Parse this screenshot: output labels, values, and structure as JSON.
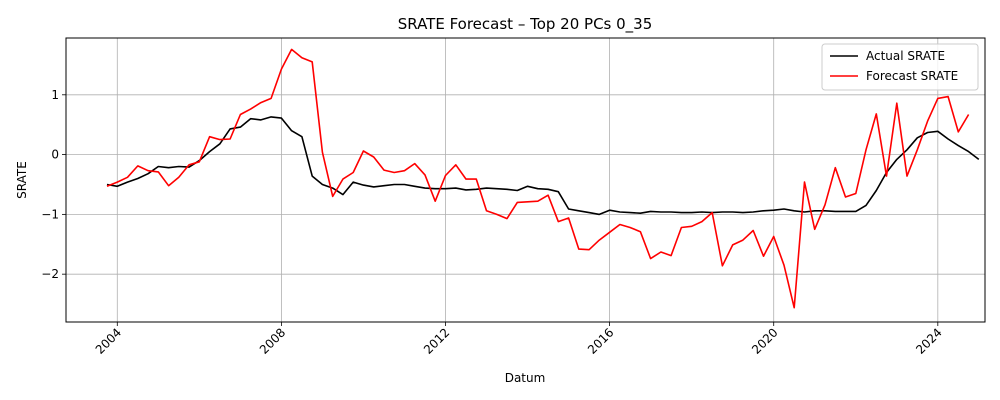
{
  "chart_data": {
    "type": "line",
    "title": "SRATE Forecast – Top 20 PCs 0_35",
    "xlabel": "Datum",
    "ylabel": "SRATE",
    "xlim": [
      2002.75,
      2025.15
    ],
    "ylim": [
      -2.8,
      1.95
    ],
    "grid": true,
    "legend_position": "top-right",
    "x_ticks": [
      2004,
      2008,
      2012,
      2016,
      2020,
      2024
    ],
    "x_tick_labels": [
      "2004",
      "2008",
      "2012",
      "2016",
      "2020",
      "2024"
    ],
    "y_ticks": [
      -2,
      -1,
      0,
      1
    ],
    "y_tick_labels": [
      "−2",
      "−1",
      "0",
      "1"
    ],
    "series": [
      {
        "name": "Actual SRATE",
        "color": "#000000",
        "points": [
          [
            2003.75,
            -0.5
          ],
          [
            2004.0,
            -0.53
          ],
          [
            2004.25,
            -0.46
          ],
          [
            2004.5,
            -0.4
          ],
          [
            2004.75,
            -0.32
          ],
          [
            2005.0,
            -0.2
          ],
          [
            2005.25,
            -0.22
          ],
          [
            2005.5,
            -0.2
          ],
          [
            2005.75,
            -0.21
          ],
          [
            2006.0,
            -0.1
          ],
          [
            2006.25,
            0.05
          ],
          [
            2006.5,
            0.18
          ],
          [
            2006.75,
            0.43
          ],
          [
            2007.0,
            0.46
          ],
          [
            2007.25,
            0.6
          ],
          [
            2007.5,
            0.58
          ],
          [
            2007.75,
            0.63
          ],
          [
            2008.0,
            0.61
          ],
          [
            2008.25,
            0.4
          ],
          [
            2008.5,
            0.3
          ],
          [
            2008.75,
            -0.36
          ],
          [
            2009.0,
            -0.5
          ],
          [
            2009.25,
            -0.56
          ],
          [
            2009.5,
            -0.67
          ],
          [
            2009.75,
            -0.46
          ],
          [
            2010.0,
            -0.51
          ],
          [
            2010.25,
            -0.54
          ],
          [
            2010.5,
            -0.52
          ],
          [
            2010.75,
            -0.5
          ],
          [
            2011.0,
            -0.5
          ],
          [
            2011.25,
            -0.53
          ],
          [
            2011.5,
            -0.56
          ],
          [
            2011.75,
            -0.57
          ],
          [
            2012.0,
            -0.57
          ],
          [
            2012.25,
            -0.56
          ],
          [
            2012.5,
            -0.59
          ],
          [
            2012.75,
            -0.58
          ],
          [
            2013.0,
            -0.56
          ],
          [
            2013.25,
            -0.57
          ],
          [
            2013.5,
            -0.58
          ],
          [
            2013.75,
            -0.6
          ],
          [
            2014.0,
            -0.53
          ],
          [
            2014.25,
            -0.57
          ],
          [
            2014.5,
            -0.58
          ],
          [
            2014.75,
            -0.62
          ],
          [
            2015.0,
            -0.91
          ],
          [
            2015.25,
            -0.94
          ],
          [
            2015.5,
            -0.97
          ],
          [
            2015.75,
            -1.0
          ],
          [
            2016.0,
            -0.93
          ],
          [
            2016.25,
            -0.96
          ],
          [
            2016.5,
            -0.97
          ],
          [
            2016.75,
            -0.98
          ],
          [
            2017.0,
            -0.95
          ],
          [
            2017.25,
            -0.96
          ],
          [
            2017.5,
            -0.96
          ],
          [
            2017.75,
            -0.97
          ],
          [
            2018.0,
            -0.97
          ],
          [
            2018.25,
            -0.96
          ],
          [
            2018.5,
            -0.97
          ],
          [
            2018.75,
            -0.96
          ],
          [
            2019.0,
            -0.96
          ],
          [
            2019.25,
            -0.97
          ],
          [
            2019.5,
            -0.96
          ],
          [
            2019.75,
            -0.94
          ],
          [
            2020.0,
            -0.93
          ],
          [
            2020.25,
            -0.91
          ],
          [
            2020.5,
            -0.94
          ],
          [
            2020.75,
            -0.96
          ],
          [
            2021.0,
            -0.94
          ],
          [
            2021.25,
            -0.94
          ],
          [
            2021.5,
            -0.95
          ],
          [
            2021.75,
            -0.95
          ],
          [
            2022.0,
            -0.95
          ],
          [
            2022.25,
            -0.85
          ],
          [
            2022.5,
            -0.6
          ],
          [
            2022.75,
            -0.3
          ],
          [
            2023.0,
            -0.08
          ],
          [
            2023.25,
            0.08
          ],
          [
            2023.5,
            0.28
          ],
          [
            2023.75,
            0.37
          ],
          [
            2024.0,
            0.39
          ],
          [
            2024.25,
            0.26
          ],
          [
            2024.5,
            0.15
          ],
          [
            2024.75,
            0.05
          ],
          [
            2025.0,
            -0.08
          ]
        ]
      },
      {
        "name": "Forecast SRATE",
        "color": "#ff0000",
        "points": [
          [
            2003.75,
            -0.53
          ],
          [
            2004.0,
            -0.46
          ],
          [
            2004.25,
            -0.38
          ],
          [
            2004.5,
            -0.19
          ],
          [
            2004.75,
            -0.27
          ],
          [
            2005.0,
            -0.29
          ],
          [
            2005.25,
            -0.52
          ],
          [
            2005.5,
            -0.38
          ],
          [
            2005.75,
            -0.17
          ],
          [
            2006.0,
            -0.12
          ],
          [
            2006.25,
            0.3
          ],
          [
            2006.5,
            0.25
          ],
          [
            2006.75,
            0.26
          ],
          [
            2007.0,
            0.67
          ],
          [
            2007.25,
            0.76
          ],
          [
            2007.5,
            0.87
          ],
          [
            2007.75,
            0.94
          ],
          [
            2008.0,
            1.43
          ],
          [
            2008.25,
            1.76
          ],
          [
            2008.5,
            1.62
          ],
          [
            2008.75,
            1.55
          ],
          [
            2009.0,
            0.04
          ],
          [
            2009.25,
            -0.7
          ],
          [
            2009.5,
            -0.41
          ],
          [
            2009.75,
            -0.3
          ],
          [
            2010.0,
            0.06
          ],
          [
            2010.25,
            -0.04
          ],
          [
            2010.5,
            -0.26
          ],
          [
            2010.75,
            -0.3
          ],
          [
            2011.0,
            -0.27
          ],
          [
            2011.25,
            -0.15
          ],
          [
            2011.5,
            -0.34
          ],
          [
            2011.75,
            -0.78
          ],
          [
            2012.0,
            -0.35
          ],
          [
            2012.25,
            -0.17
          ],
          [
            2012.5,
            -0.41
          ],
          [
            2012.75,
            -0.41
          ],
          [
            2013.0,
            -0.94
          ],
          [
            2013.25,
            -1.0
          ],
          [
            2013.5,
            -1.07
          ],
          [
            2013.75,
            -0.8
          ],
          [
            2014.0,
            -0.79
          ],
          [
            2014.25,
            -0.78
          ],
          [
            2014.5,
            -0.68
          ],
          [
            2014.75,
            -1.12
          ],
          [
            2015.0,
            -1.06
          ],
          [
            2015.25,
            -1.58
          ],
          [
            2015.5,
            -1.59
          ],
          [
            2015.75,
            -1.43
          ],
          [
            2016.0,
            -1.3
          ],
          [
            2016.25,
            -1.17
          ],
          [
            2016.5,
            -1.22
          ],
          [
            2016.75,
            -1.29
          ],
          [
            2017.0,
            -1.74
          ],
          [
            2017.25,
            -1.63
          ],
          [
            2017.5,
            -1.69
          ],
          [
            2017.75,
            -1.22
          ],
          [
            2018.0,
            -1.2
          ],
          [
            2018.25,
            -1.12
          ],
          [
            2018.5,
            -0.97
          ],
          [
            2018.75,
            -1.86
          ],
          [
            2019.0,
            -1.51
          ],
          [
            2019.25,
            -1.43
          ],
          [
            2019.5,
            -1.27
          ],
          [
            2019.75,
            -1.7
          ],
          [
            2020.0,
            -1.37
          ],
          [
            2020.25,
            -1.85
          ],
          [
            2020.5,
            -2.56
          ],
          [
            2020.75,
            -0.46
          ],
          [
            2021.0,
            -1.25
          ],
          [
            2021.25,
            -0.84
          ],
          [
            2021.5,
            -0.22
          ],
          [
            2021.75,
            -0.71
          ],
          [
            2022.0,
            -0.65
          ],
          [
            2022.25,
            0.08
          ],
          [
            2022.5,
            0.68
          ],
          [
            2022.75,
            -0.36
          ],
          [
            2023.0,
            0.86
          ],
          [
            2023.25,
            -0.36
          ],
          [
            2023.5,
            0.08
          ],
          [
            2023.75,
            0.56
          ],
          [
            2024.0,
            0.94
          ],
          [
            2024.25,
            0.97
          ],
          [
            2024.5,
            0.38
          ],
          [
            2024.75,
            0.67
          ]
        ]
      }
    ]
  }
}
